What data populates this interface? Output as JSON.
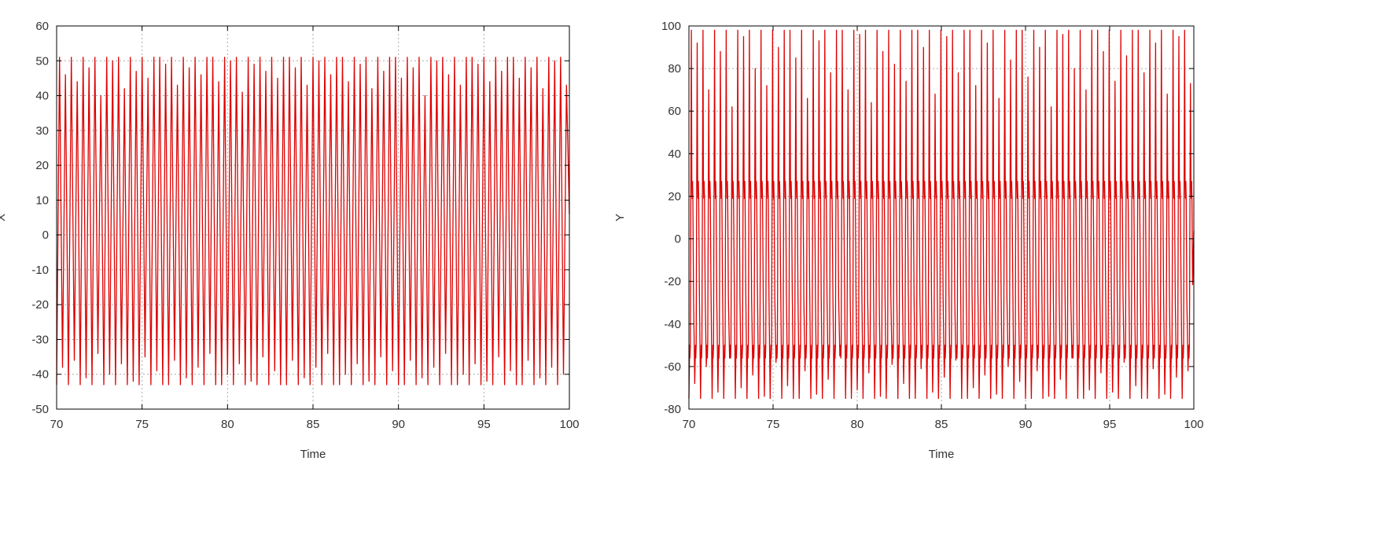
{
  "chart_data": [
    {
      "type": "line",
      "title": "",
      "xlabel": "Time",
      "ylabel": "X",
      "xlim": [
        70,
        100
      ],
      "ylim": [
        -50,
        60
      ],
      "xticks": [
        70,
        75,
        80,
        85,
        90,
        95,
        100
      ],
      "yticks": [
        -50,
        -40,
        -30,
        -20,
        -10,
        0,
        10,
        20,
        30,
        40,
        50,
        60
      ],
      "grid": true,
      "color": "#dd0000",
      "series": [
        {
          "name": "",
          "x": [
            70.0,
            70.35,
            70.7,
            71.05,
            71.4,
            71.75,
            72.1,
            72.45,
            72.8,
            73.15,
            73.5,
            73.85,
            74.2,
            74.55,
            74.9,
            75.25,
            75.6,
            75.95,
            76.3,
            76.65,
            77.0,
            77.35,
            77.7,
            78.05,
            78.4,
            78.75,
            79.1,
            79.45,
            79.8,
            80.15,
            80.5,
            80.85,
            81.2,
            81.55,
            81.9,
            82.25,
            82.6,
            82.95,
            83.3,
            83.65,
            84.0,
            84.35,
            84.7,
            85.05,
            85.4,
            85.75,
            86.1,
            86.45,
            86.8,
            87.15,
            87.5,
            87.85,
            88.2,
            88.55,
            88.9,
            89.25,
            89.6,
            89.95,
            90.3,
            90.65,
            91.0,
            91.35,
            91.7,
            92.05,
            92.4,
            92.75,
            93.1,
            93.45,
            93.8,
            94.15,
            94.5,
            94.85,
            95.2,
            95.55,
            95.9,
            96.25,
            96.6,
            96.95,
            97.3,
            97.65,
            98.0,
            98.35,
            98.7,
            99.05,
            99.4,
            99.75,
            100.0
          ],
          "peaks": [
            51,
            46,
            51,
            44,
            51,
            48,
            51,
            40,
            51,
            50,
            51,
            42,
            51,
            47,
            51,
            45,
            51,
            51,
            49,
            51,
            43,
            51,
            48,
            51,
            46,
            51,
            51,
            44,
            51,
            50,
            51,
            41,
            51,
            49,
            51,
            47,
            51,
            45,
            51,
            51,
            48,
            51,
            43,
            51,
            50,
            51,
            46,
            51,
            51,
            44,
            51,
            49,
            51,
            42,
            51,
            47,
            51,
            51,
            45,
            51,
            48,
            51,
            40,
            51,
            50,
            51,
            46,
            51,
            43,
            51,
            51,
            49,
            51,
            44,
            51,
            47,
            51,
            51,
            45,
            51,
            48,
            51,
            42,
            51,
            50,
            51,
            43
          ],
          "troughs": [
            -43,
            -38,
            -43,
            -36,
            -43,
            -41,
            -43,
            -34,
            -43,
            -40,
            -43,
            -37,
            -43,
            -42,
            -43,
            -35,
            -43,
            -39,
            -43,
            -43,
            -36,
            -43,
            -41,
            -43,
            -38,
            -43,
            -34,
            -43,
            -43,
            -40,
            -43,
            -37,
            -43,
            -42,
            -43,
            -35,
            -43,
            -39,
            -43,
            -43,
            -36,
            -43,
            -41,
            -43,
            -38,
            -43,
            -34,
            -43,
            -43,
            -40,
            -43,
            -37,
            -43,
            -42,
            -43,
            -35,
            -43,
            -39,
            -43,
            -43,
            -36,
            -43,
            -41,
            -43,
            -38,
            -43,
            -34,
            -43,
            -43,
            -40,
            -43,
            -37,
            -43,
            -42,
            -43,
            -35,
            -43,
            -39,
            -43,
            -43,
            -36,
            -43,
            -41,
            -43,
            -38,
            -43,
            -40
          ]
        }
      ]
    },
    {
      "type": "line",
      "title": "",
      "xlabel": "Time",
      "ylabel": "Y",
      "xlim": [
        70,
        100
      ],
      "ylim": [
        -80,
        100
      ],
      "xticks": [
        70,
        75,
        80,
        85,
        90,
        95,
        100
      ],
      "yticks": [
        -80,
        -60,
        -40,
        -20,
        0,
        20,
        40,
        60,
        80,
        100
      ],
      "grid": true,
      "color": "#dd0000",
      "series": [
        {
          "name": "",
          "x": [
            70.0,
            70.35,
            70.7,
            71.05,
            71.4,
            71.75,
            72.1,
            72.45,
            72.8,
            73.15,
            73.5,
            73.85,
            74.2,
            74.55,
            74.9,
            75.25,
            75.6,
            75.95,
            76.3,
            76.65,
            77.0,
            77.35,
            77.7,
            78.05,
            78.4,
            78.75,
            79.1,
            79.45,
            79.8,
            80.15,
            80.5,
            80.85,
            81.2,
            81.55,
            81.9,
            82.25,
            82.6,
            82.95,
            83.3,
            83.65,
            84.0,
            84.35,
            84.7,
            85.05,
            85.4,
            85.75,
            86.1,
            86.45,
            86.8,
            87.15,
            87.5,
            87.85,
            88.2,
            88.55,
            88.9,
            89.25,
            89.6,
            89.95,
            90.3,
            90.65,
            91.0,
            91.35,
            91.7,
            92.05,
            92.4,
            92.75,
            93.1,
            93.45,
            93.8,
            94.15,
            94.5,
            94.85,
            95.2,
            95.55,
            95.9,
            96.25,
            96.6,
            96.95,
            97.3,
            97.65,
            98.0,
            98.35,
            98.7,
            99.05,
            99.4,
            99.75,
            100.0
          ],
          "peaks": [
            98,
            92,
            98,
            70,
            98,
            88,
            98,
            62,
            98,
            95,
            98,
            80,
            98,
            72,
            98,
            90,
            98,
            98,
            85,
            98,
            66,
            98,
            93,
            98,
            78,
            98,
            98,
            70,
            98,
            96,
            98,
            64,
            98,
            88,
            98,
            82,
            98,
            74,
            98,
            98,
            90,
            98,
            68,
            98,
            95,
            98,
            78,
            98,
            98,
            72,
            98,
            92,
            98,
            66,
            98,
            84,
            98,
            98,
            76,
            98,
            90,
            98,
            62,
            98,
            96,
            98,
            80,
            98,
            70,
            98,
            98,
            88,
            98,
            74,
            98,
            86,
            98,
            98,
            78,
            98,
            92,
            98,
            68,
            98,
            95,
            98,
            73
          ],
          "troughs": [
            -75,
            -68,
            -75,
            -60,
            -75,
            -72,
            -75,
            -56,
            -75,
            -70,
            -75,
            -64,
            -75,
            -74,
            -75,
            -58,
            -75,
            -69,
            -75,
            -75,
            -62,
            -75,
            -73,
            -75,
            -66,
            -75,
            -55,
            -75,
            -75,
            -71,
            -75,
            -63,
            -75,
            -74,
            -75,
            -59,
            -75,
            -68,
            -75,
            -75,
            -61,
            -75,
            -72,
            -75,
            -65,
            -75,
            -57,
            -75,
            -75,
            -70,
            -75,
            -64,
            -75,
            -73,
            -75,
            -60,
            -75,
            -67,
            -75,
            -75,
            -62,
            -75,
            -74,
            -75,
            -66,
            -75,
            -56,
            -75,
            -75,
            -71,
            -75,
            -63,
            -75,
            -72,
            -75,
            -58,
            -75,
            -69,
            -75,
            -75,
            -61,
            -75,
            -73,
            -75,
            -65,
            -75,
            -62
          ],
          "shoulder_high": [
            27,
            19
          ],
          "shoulder_low": [
            -50,
            -56
          ]
        }
      ]
    }
  ]
}
